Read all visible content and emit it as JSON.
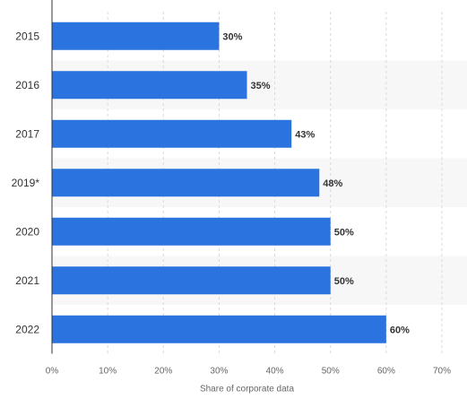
{
  "chart_data": {
    "type": "bar",
    "orientation": "horizontal",
    "categories": [
      "2015",
      "2016",
      "2017",
      "2019*",
      "2020",
      "2021",
      "2022"
    ],
    "values": [
      30,
      35,
      43,
      48,
      50,
      50,
      60
    ],
    "value_labels": [
      "30%",
      "35%",
      "43%",
      "48%",
      "50%",
      "50%",
      "60%"
    ],
    "xlabel": "Share of corporate data",
    "ylabel": "",
    "xlim": [
      0,
      70
    ],
    "x_ticks": [
      0,
      10,
      20,
      30,
      40,
      50,
      60,
      70
    ],
    "x_tick_labels": [
      "0%",
      "10%",
      "20%",
      "30%",
      "40%",
      "50%",
      "60%",
      "70%"
    ],
    "grid": "vertical dashed",
    "legend": "none",
    "colors": {
      "bar": "#2B73DE",
      "band_alt": "#F7F7F7",
      "grid": "#D9D9D9",
      "axis": "#333333",
      "category_text": "#333333",
      "tick_text": "#666666",
      "value_text": "#333333"
    }
  }
}
